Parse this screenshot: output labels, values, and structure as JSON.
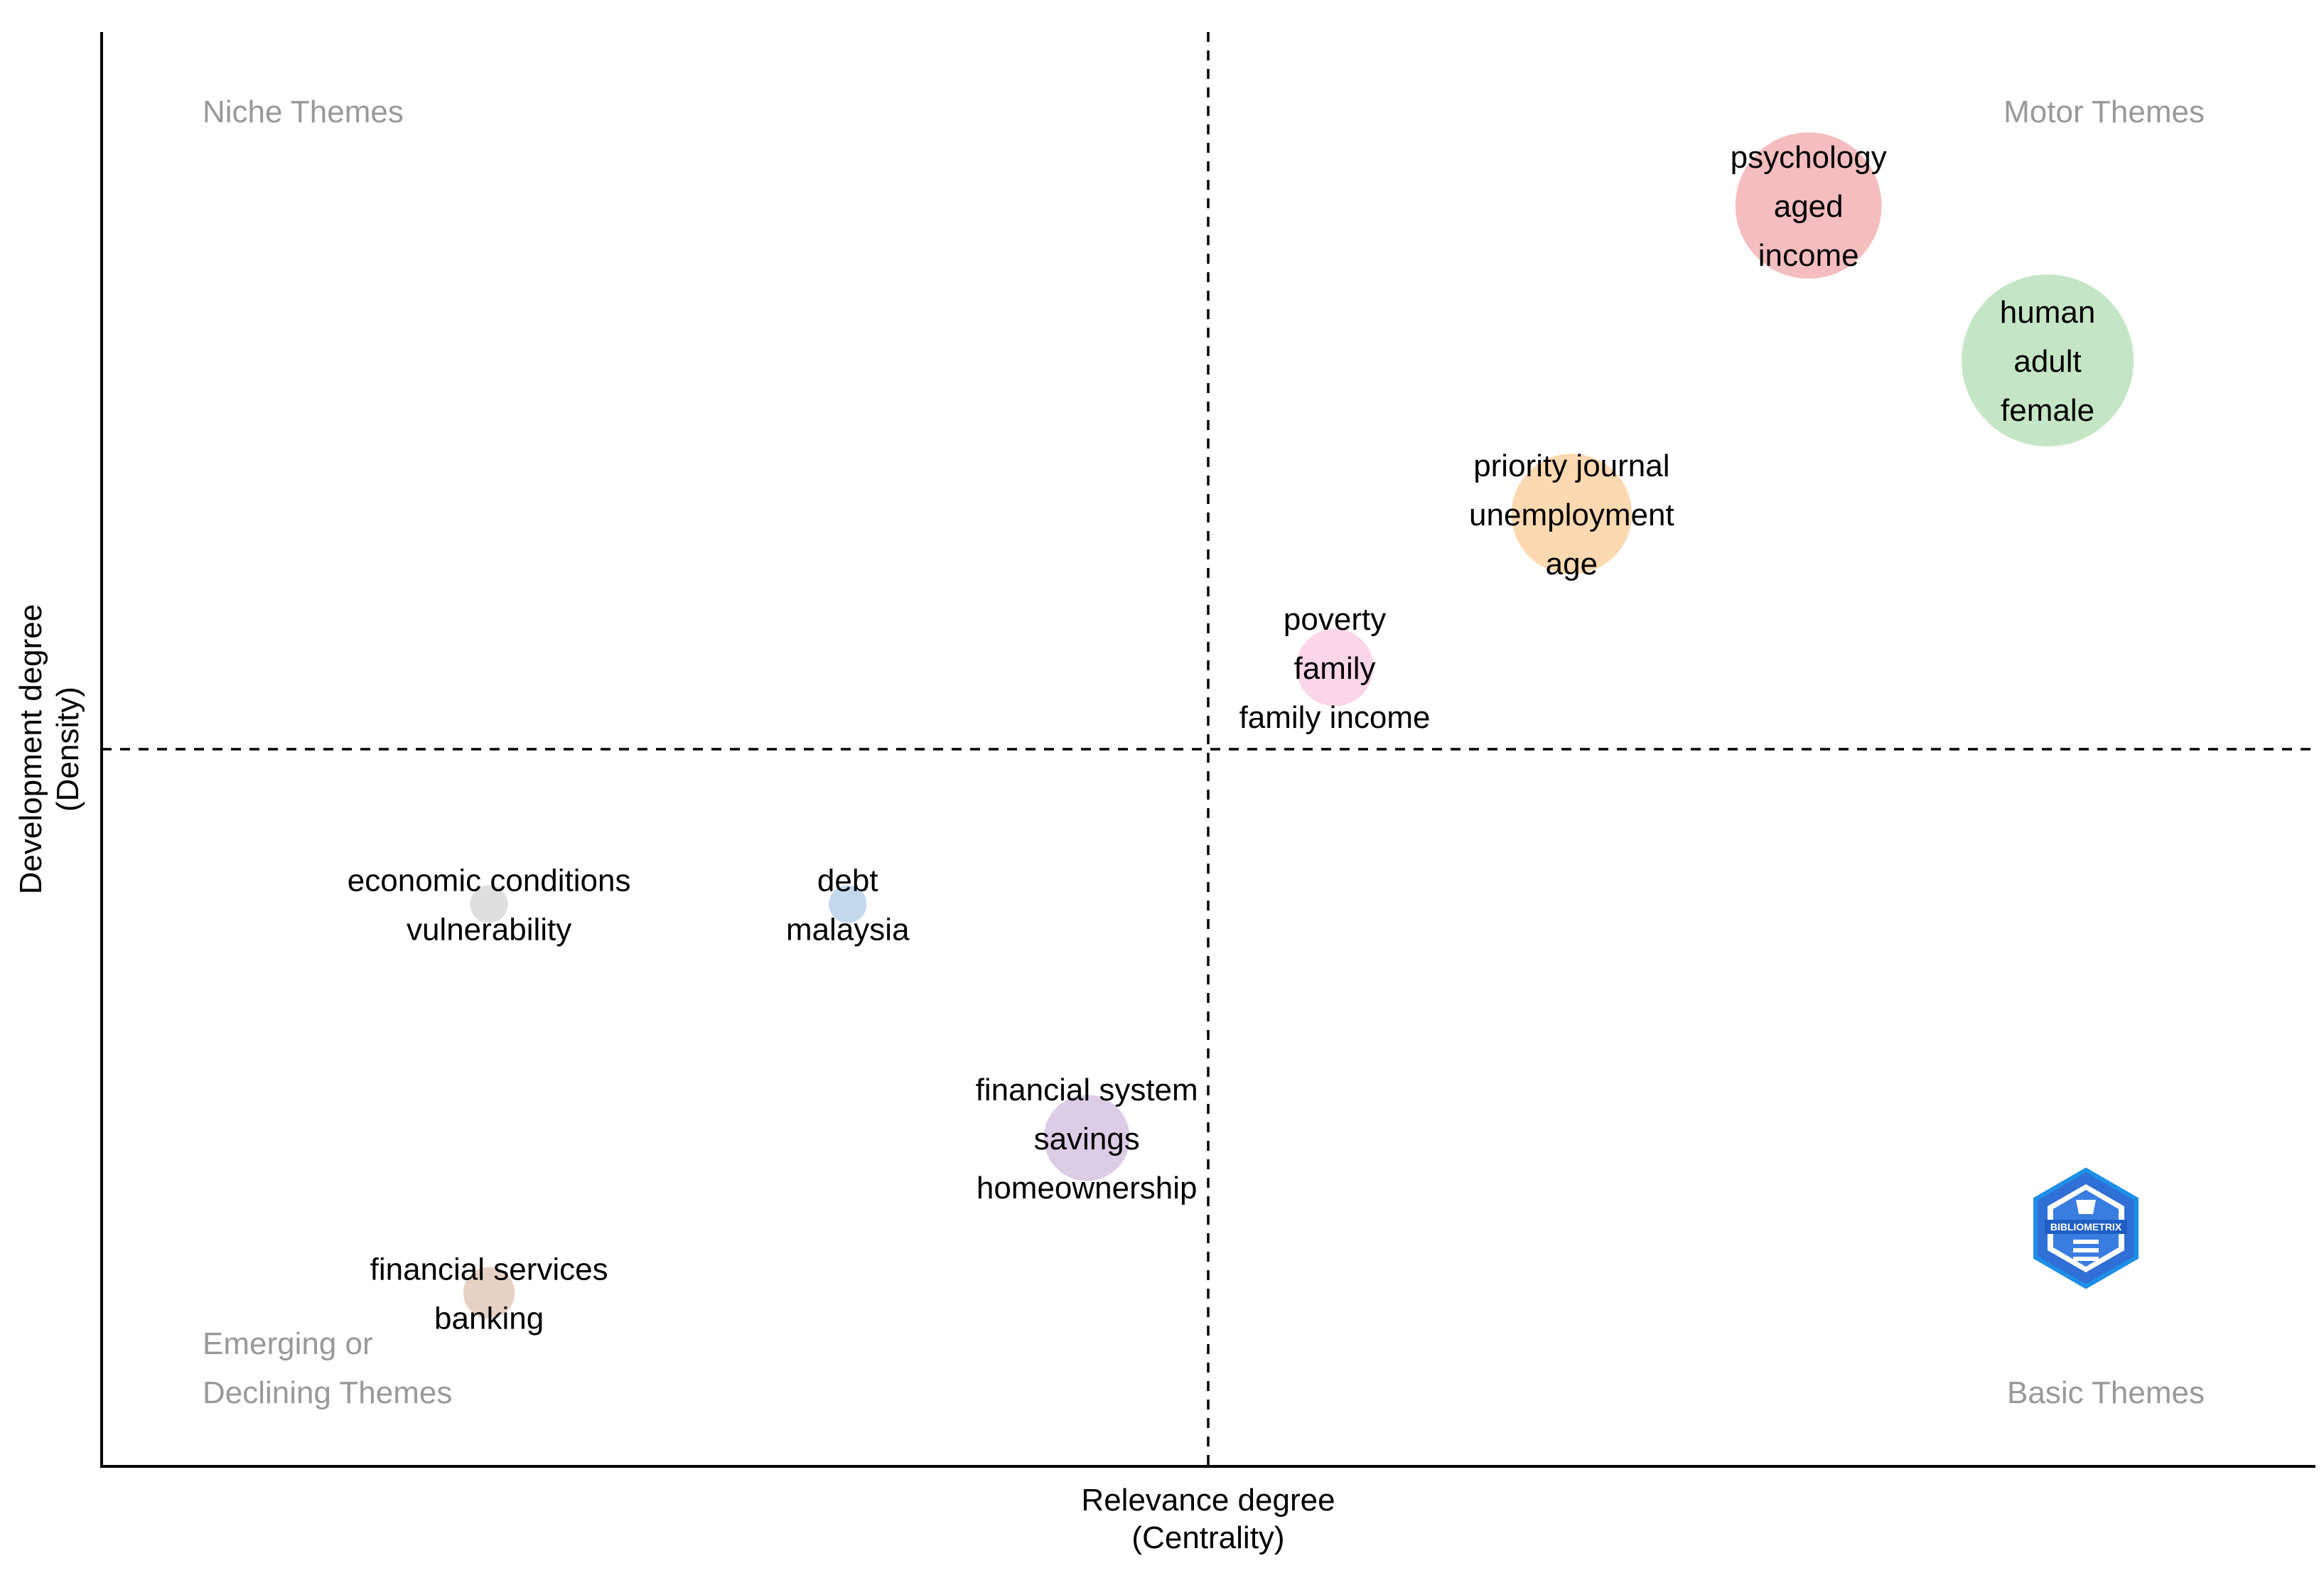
{
  "chart_data": {
    "type": "scatter",
    "subtype": "thematic-map",
    "xlabel": [
      "Relevance degree",
      "(Centrality)"
    ],
    "ylabel": [
      "Development degree",
      "(Density)"
    ],
    "xlim": [
      0,
      1
    ],
    "ylim": [
      0,
      1
    ],
    "x_divider": 0.5,
    "y_divider": 0.5,
    "grid": false,
    "quadrant_labels": {
      "top_left": [
        "Niche Themes"
      ],
      "top_right": [
        "Motor Themes"
      ],
      "bottom_left": [
        "Emerging or",
        "Declining Themes"
      ],
      "bottom_right": [
        "Basic Themes"
      ]
    },
    "clusters": [
      {
        "labels": [
          "psychology",
          "aged",
          "income"
        ],
        "x": 0.771,
        "y": 0.879,
        "size": 0.85,
        "color": "#f4b6b8"
      },
      {
        "labels": [
          "human",
          "adult",
          "female"
        ],
        "x": 0.879,
        "y": 0.771,
        "size": 1.0,
        "color": "#bfe3c0"
      },
      {
        "labels": [
          "priority journal",
          "unemployment",
          "age"
        ],
        "x": 0.664,
        "y": 0.664,
        "size": 0.7,
        "color": "#fdd5a8"
      },
      {
        "labels": [
          "poverty",
          "family",
          "family income"
        ],
        "x": 0.557,
        "y": 0.557,
        "size": 0.45,
        "color": "#f9d2e6"
      },
      {
        "labels": [
          "economic conditions",
          "vulnerability"
        ],
        "x": 0.175,
        "y": 0.392,
        "size": 0.22,
        "color": "#dcdcdc"
      },
      {
        "labels": [
          "debt",
          "malaysia"
        ],
        "x": 0.337,
        "y": 0.392,
        "size": 0.22,
        "color": "#bcd4ea"
      },
      {
        "labels": [
          "financial system",
          "savings",
          "homeownership"
        ],
        "x": 0.445,
        "y": 0.229,
        "size": 0.5,
        "color": "#d9c6e3"
      },
      {
        "labels": [
          "financial services",
          "banking"
        ],
        "x": 0.175,
        "y": 0.121,
        "size": 0.3,
        "color": "#e3cdbf"
      }
    ],
    "logo": {
      "text": "BIBLIOMETRIX"
    }
  }
}
